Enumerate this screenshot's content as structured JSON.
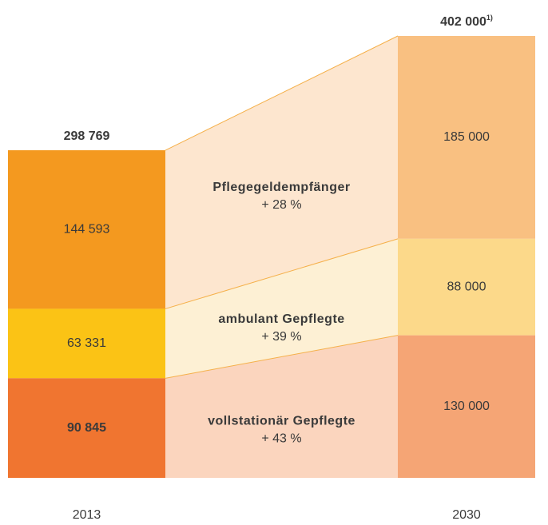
{
  "chart_data": {
    "type": "stacked-bridge",
    "categories": [
      "2013",
      "2030"
    ],
    "totals": [
      298769,
      402000
    ],
    "total_labels": [
      "298 769",
      "402 000"
    ],
    "total_footnote": "1)",
    "series": [
      {
        "name": "Pflegegeldempfänger",
        "change": "+ 28 %",
        "values": [
          144593,
          185000
        ],
        "value_labels": [
          "144 593",
          "185 000"
        ],
        "colors": [
          "#f4991f",
          "#f9c081"
        ],
        "band_color": "#fde6cf",
        "label_colors": [
          "#3a3a3a",
          "#3a3a3a"
        ]
      },
      {
        "name": "ambulant Gepflegte",
        "change": "+ 39 %",
        "values": [
          63331,
          88000
        ],
        "value_labels": [
          "63 331",
          "88 000"
        ],
        "colors": [
          "#fbc315",
          "#fcd98a"
        ],
        "band_color": "#fdf0d4",
        "label_colors": [
          "#3a3a3a",
          "#3a3a3a"
        ]
      },
      {
        "name": "vollstationär Gepflegte",
        "change": "+ 43 %",
        "values": [
          90845,
          130000
        ],
        "value_labels": [
          "90 845",
          "130 000"
        ],
        "colors": [
          "#f07530",
          "#f5a575"
        ],
        "band_color": "#fbd5be",
        "label_colors": [
          "#ffffff",
          "#3a3a3a"
        ]
      }
    ],
    "edge_color": "#f5b04a"
  }
}
